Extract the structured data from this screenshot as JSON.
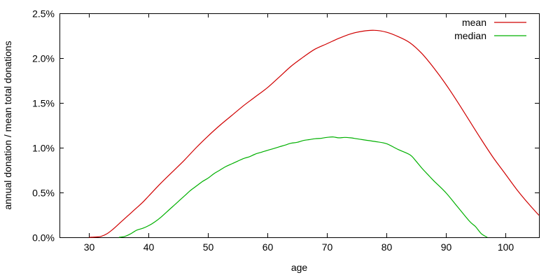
{
  "chart_data": {
    "type": "line",
    "title": "",
    "xlabel": "age",
    "ylabel": "annual donation / mean total donations",
    "xlim": [
      25,
      105.7
    ],
    "ylim": [
      0,
      2.5
    ],
    "grid": false,
    "legend_position": "top-right-inside",
    "x_ticks": [
      {
        "v": 30,
        "label": "30"
      },
      {
        "v": 40,
        "label": "40"
      },
      {
        "v": 50,
        "label": "50"
      },
      {
        "v": 60,
        "label": "60"
      },
      {
        "v": 70,
        "label": "70"
      },
      {
        "v": 80,
        "label": "80"
      },
      {
        "v": 90,
        "label": "90"
      },
      {
        "v": 100,
        "label": "100"
      }
    ],
    "y_ticks": [
      {
        "v": 0.0,
        "label": "0.0%"
      },
      {
        "v": 0.5,
        "label": "0.5%"
      },
      {
        "v": 1.0,
        "label": "1.0%"
      },
      {
        "v": 1.5,
        "label": "1.5%"
      },
      {
        "v": 2.0,
        "label": "2.0%"
      },
      {
        "v": 2.5,
        "label": "2.5%"
      }
    ],
    "series": [
      {
        "name": "mean",
        "color": "#d00000",
        "points": [
          [
            30,
            0.0
          ],
          [
            31,
            0.003
          ],
          [
            32,
            0.01
          ],
          [
            33,
            0.04
          ],
          [
            34,
            0.09
          ],
          [
            35,
            0.15
          ],
          [
            36,
            0.21
          ],
          [
            37,
            0.27
          ],
          [
            38,
            0.33
          ],
          [
            39,
            0.39
          ],
          [
            40,
            0.46
          ],
          [
            42,
            0.6
          ],
          [
            44,
            0.73
          ],
          [
            46,
            0.86
          ],
          [
            48,
            1.0
          ],
          [
            50,
            1.13
          ],
          [
            52,
            1.25
          ],
          [
            54,
            1.36
          ],
          [
            56,
            1.47
          ],
          [
            58,
            1.57
          ],
          [
            60,
            1.67
          ],
          [
            62,
            1.79
          ],
          [
            64,
            1.91
          ],
          [
            66,
            2.01
          ],
          [
            68,
            2.1
          ],
          [
            70,
            2.16
          ],
          [
            72,
            2.22
          ],
          [
            74,
            2.27
          ],
          [
            76,
            2.3
          ],
          [
            78,
            2.31
          ],
          [
            80,
            2.29
          ],
          [
            82,
            2.24
          ],
          [
            84,
            2.17
          ],
          [
            86,
            2.05
          ],
          [
            88,
            1.89
          ],
          [
            90,
            1.71
          ],
          [
            92,
            1.51
          ],
          [
            94,
            1.3
          ],
          [
            96,
            1.09
          ],
          [
            98,
            0.89
          ],
          [
            100,
            0.71
          ],
          [
            102,
            0.53
          ],
          [
            104,
            0.37
          ],
          [
            105.7,
            0.245
          ]
        ]
      },
      {
        "name": "median",
        "color": "#00b000",
        "points": [
          [
            35,
            0.0
          ],
          [
            36,
            0.01
          ],
          [
            37,
            0.04
          ],
          [
            38,
            0.08
          ],
          [
            39,
            0.1
          ],
          [
            40,
            0.13
          ],
          [
            41,
            0.17
          ],
          [
            42,
            0.22
          ],
          [
            43,
            0.28
          ],
          [
            44,
            0.34
          ],
          [
            45,
            0.4
          ],
          [
            46,
            0.46
          ],
          [
            47,
            0.52
          ],
          [
            48,
            0.57
          ],
          [
            49,
            0.62
          ],
          [
            50,
            0.66
          ],
          [
            51,
            0.71
          ],
          [
            52,
            0.75
          ],
          [
            53,
            0.79
          ],
          [
            54,
            0.82
          ],
          [
            55,
            0.85
          ],
          [
            56,
            0.88
          ],
          [
            57,
            0.9
          ],
          [
            58,
            0.93
          ],
          [
            59,
            0.95
          ],
          [
            60,
            0.97
          ],
          [
            61,
            0.99
          ],
          [
            62,
            1.01
          ],
          [
            63,
            1.03
          ],
          [
            64,
            1.05
          ],
          [
            65,
            1.06
          ],
          [
            66,
            1.08
          ],
          [
            67,
            1.09
          ],
          [
            68,
            1.1
          ],
          [
            69,
            1.105
          ],
          [
            70,
            1.115
          ],
          [
            71,
            1.12
          ],
          [
            72,
            1.11
          ],
          [
            73,
            1.115
          ],
          [
            74,
            1.11
          ],
          [
            75,
            1.1
          ],
          [
            76,
            1.09
          ],
          [
            78,
            1.07
          ],
          [
            80,
            1.045
          ],
          [
            82,
            0.98
          ],
          [
            84,
            0.92
          ],
          [
            85,
            0.85
          ],
          [
            86,
            0.77
          ],
          [
            87,
            0.7
          ],
          [
            88,
            0.63
          ],
          [
            90,
            0.5
          ],
          [
            92,
            0.34
          ],
          [
            94,
            0.18
          ],
          [
            95,
            0.12
          ],
          [
            96,
            0.04
          ],
          [
            97,
            0.0
          ]
        ]
      }
    ],
    "legend": [
      {
        "label": "mean",
        "color": "#d00000"
      },
      {
        "label": "median",
        "color": "#00b000"
      }
    ]
  },
  "colors": {
    "background": "#ffffff",
    "axis": "#000000",
    "text": "#000000"
  }
}
